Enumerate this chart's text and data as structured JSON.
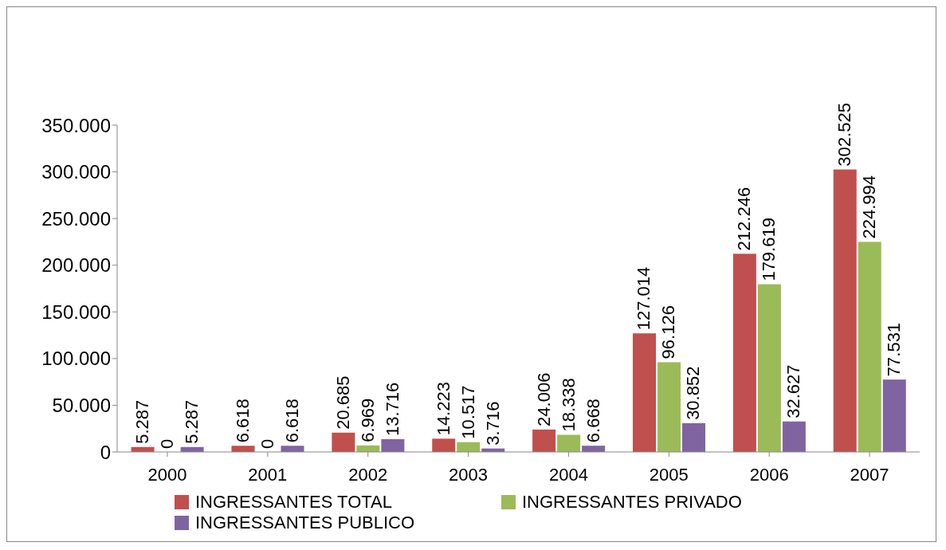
{
  "chart_data": {
    "type": "bar",
    "categories": [
      "2000",
      "2001",
      "2002",
      "2003",
      "2004",
      "2005",
      "2006",
      "2007"
    ],
    "series": [
      {
        "name": "INGRESSANTES TOTAL",
        "color": "#c0504d",
        "values": [
          5287,
          6618,
          20685,
          14223,
          24006,
          127014,
          212246,
          302525
        ],
        "value_labels": [
          "5.287",
          "6.618",
          "20.685",
          "14.223",
          "24.006",
          "127.014",
          "212.246",
          "302.525"
        ]
      },
      {
        "name": "INGRESSANTES PRIVADO",
        "color": "#9bbb59",
        "values": [
          0,
          0,
          6969,
          10517,
          18338,
          96126,
          179619,
          224994
        ],
        "value_labels": [
          "0",
          "0",
          "6.969",
          "10.517",
          "18.338",
          "96.126",
          "179.619",
          "224.994"
        ]
      },
      {
        "name": "INGRESSANTES PUBLICO",
        "color": "#8064a2",
        "values": [
          5287,
          6618,
          13716,
          3716,
          6668,
          30852,
          32627,
          77531
        ],
        "value_labels": [
          "5.287",
          "6.618",
          "13.716",
          "3.716",
          "6.668",
          "30.852",
          "32.627",
          "77.531"
        ]
      }
    ],
    "ylim": [
      0,
      350000
    ],
    "yticks": [
      {
        "value": 0,
        "label": "0"
      },
      {
        "value": 50000,
        "label": "50.000"
      },
      {
        "value": 100000,
        "label": "100.000"
      },
      {
        "value": 150000,
        "label": "150.000"
      },
      {
        "value": 200000,
        "label": "200.000"
      },
      {
        "value": 250000,
        "label": "250.000"
      },
      {
        "value": 300000,
        "label": "300.000"
      },
      {
        "value": 350000,
        "label": "350.000"
      }
    ],
    "grid": false,
    "legend": "bottom"
  }
}
